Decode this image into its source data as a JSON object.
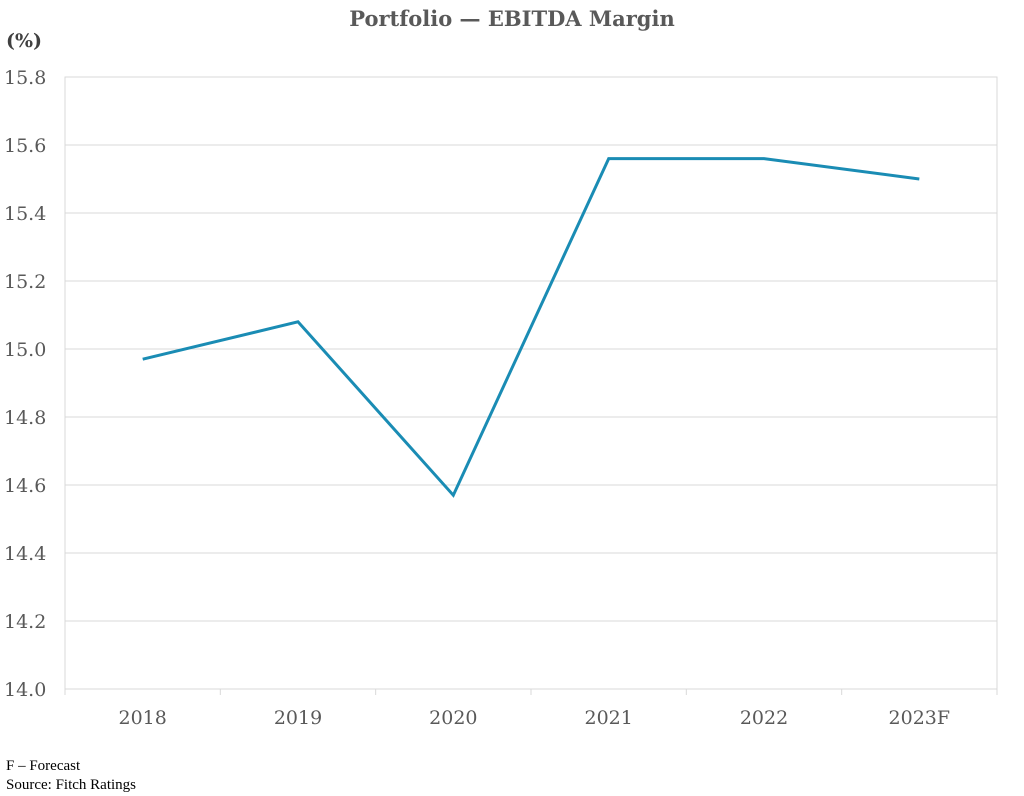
{
  "chart_data": {
    "type": "line",
    "title": "Portfolio — EBITDA Margin",
    "ylabel": "(%)",
    "xlabel": "",
    "categories": [
      "2018",
      "2019",
      "2020",
      "2021",
      "2022",
      "2023F"
    ],
    "series": [
      {
        "values": [
          14.97,
          15.08,
          14.57,
          15.56,
          15.56,
          15.5
        ],
        "color": "#1a8cb4"
      }
    ],
    "ylim": [
      14.0,
      15.8
    ],
    "yticks": [
      "14.0",
      "14.2",
      "14.4",
      "14.6",
      "14.8",
      "15.0",
      "15.2",
      "15.4",
      "15.6",
      "15.8"
    ],
    "grid": true,
    "legend": "none"
  },
  "notes": {
    "forecast": "F – Forecast",
    "source": "Source: Fitch Ratings"
  }
}
